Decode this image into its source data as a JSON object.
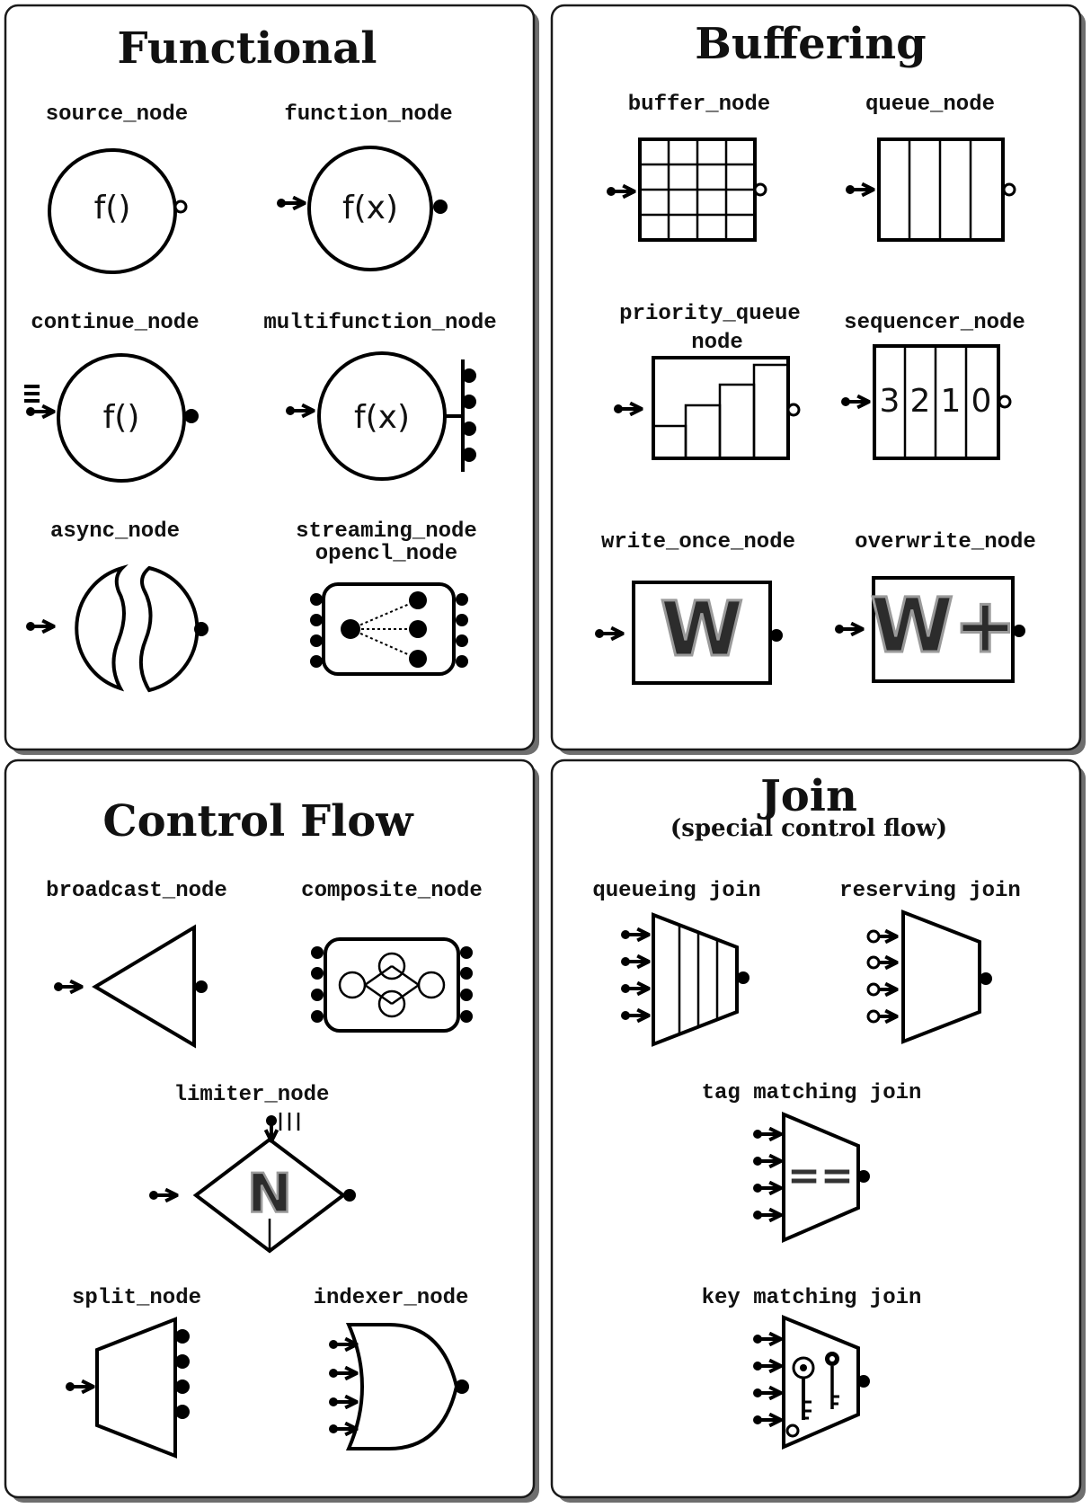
{
  "panels": {
    "functional": {
      "title": "Functional",
      "source_node": "source_node",
      "function_node": "function_node",
      "continue_node": "continue_node",
      "multifunction_node": "multifunction_node",
      "async_node": "async_node",
      "streaming_node": "streaming_node",
      "opencl_node": "opencl_node",
      "f_empty": "f()",
      "f_x": "f(x)"
    },
    "buffering": {
      "title": "Buffering",
      "buffer_node": "buffer_node",
      "queue_node": "queue_node",
      "priority_queue_line1": "priority_queue",
      "priority_queue_line2": "node",
      "sequencer_node": "sequencer_node",
      "sequence_values": [
        "3",
        "2",
        "1",
        "0"
      ],
      "write_once_node": "write_once_node",
      "overwrite_node": "overwrite_node",
      "write_once_symbol": "W",
      "overwrite_symbol": "W+"
    },
    "control_flow": {
      "title": "Control Flow",
      "broadcast_node": "broadcast_node",
      "composite_node": "composite_node",
      "limiter_node": "limiter_node",
      "limiter_symbol": "N",
      "split_node": "split_node",
      "indexer_node": "indexer_node"
    },
    "join": {
      "title": "Join",
      "subtitle": "(special control flow)",
      "queueing_join": "queueing join",
      "reserving_join": "reserving join",
      "tag_matching_join": "tag matching join",
      "tag_matching_symbol": "==",
      "key_matching_join": "key matching join"
    }
  },
  "colors": {
    "ink": "#000000",
    "panel_shadow": "#6e6e6e",
    "background": "#ffffff"
  }
}
